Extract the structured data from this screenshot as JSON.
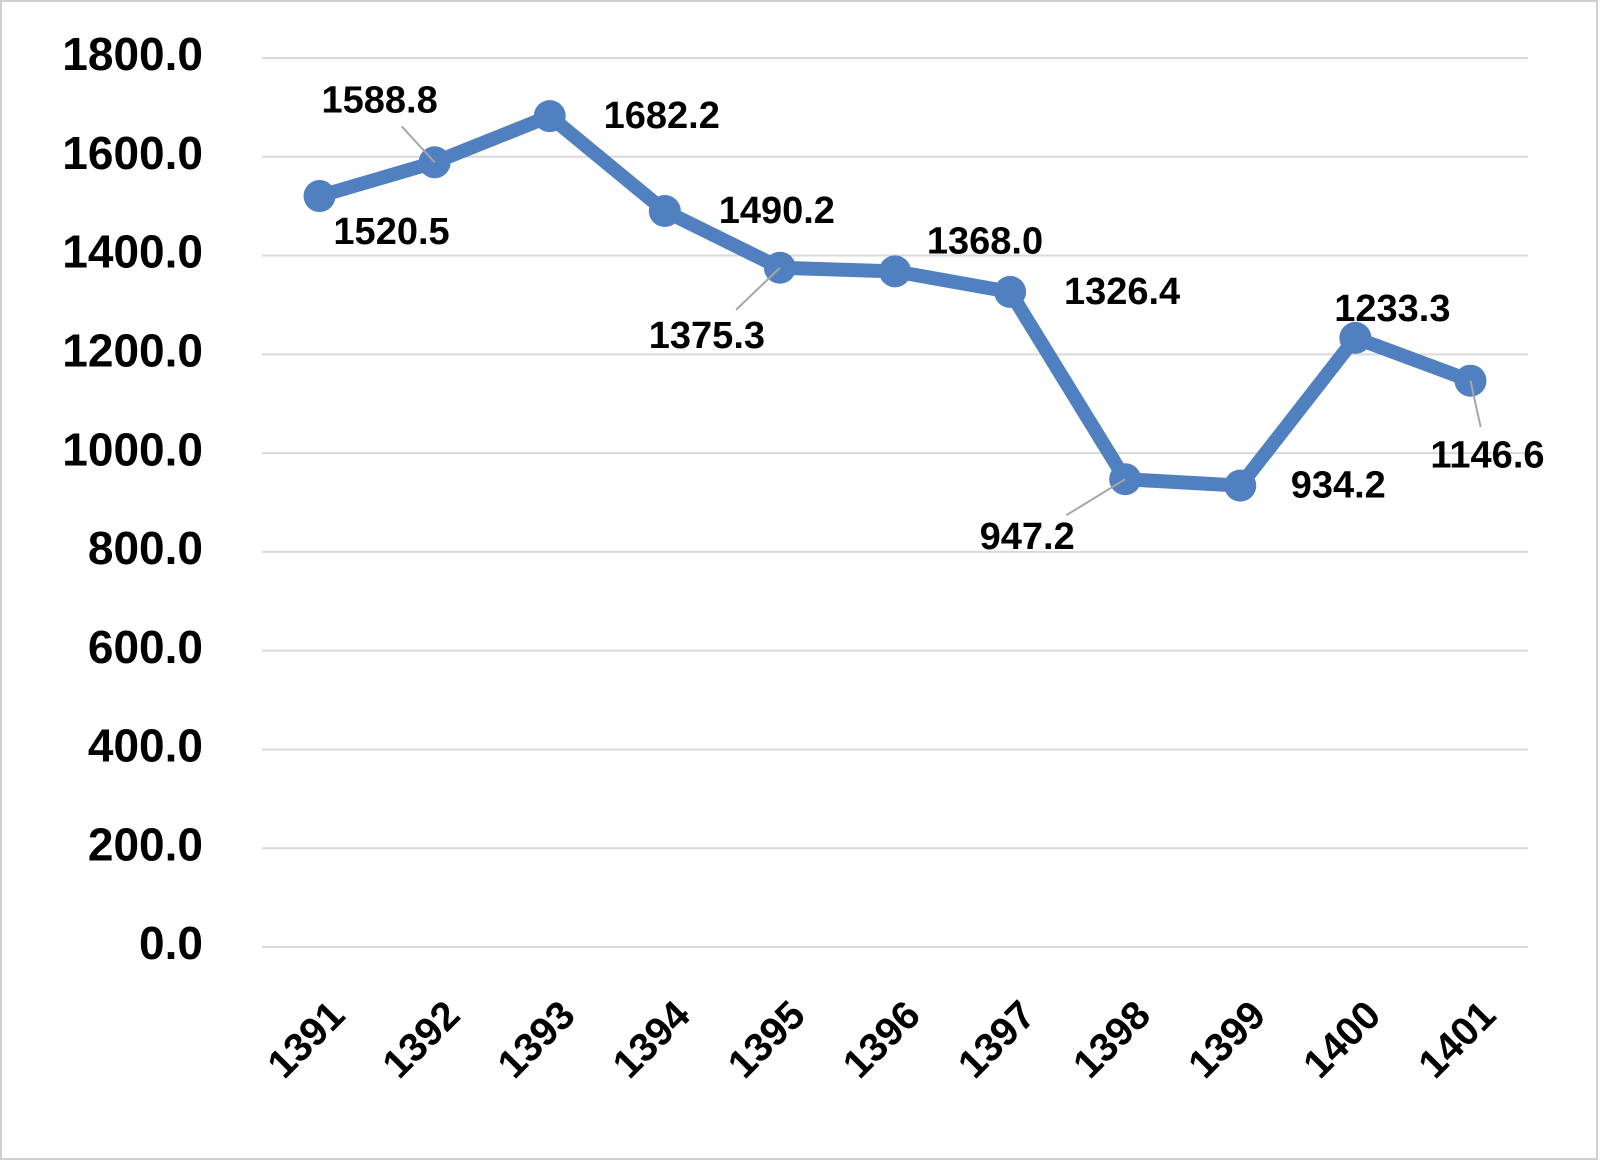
{
  "chart_data": {
    "type": "line",
    "categories": [
      "1391",
      "1392",
      "1393",
      "1394",
      "1395",
      "1396",
      "1397",
      "1398",
      "1399",
      "1400",
      "1401"
    ],
    "series": [
      {
        "color": "#5080c0",
        "values": [
          1520.5,
          1588.8,
          1682.2,
          1490.2,
          1375.3,
          1368.0,
          1326.4,
          947.2,
          934.2,
          1233.3,
          1146.6
        ],
        "value_labels": [
          "1520.5",
          "1588.8",
          "1682.2",
          "1490.2",
          "1375.3",
          "1368.0",
          "1326.4",
          "947.2",
          "934.2",
          "1233.3",
          "1146.6"
        ]
      }
    ],
    "ylim": [
      0,
      1800
    ],
    "yticks": [
      {
        "value": 0,
        "label": "0.0"
      },
      {
        "value": 200,
        "label": "200.0"
      },
      {
        "value": 400,
        "label": "400.0"
      },
      {
        "value": 600,
        "label": "600.0"
      },
      {
        "value": 800,
        "label": "800.0"
      },
      {
        "value": 1000,
        "label": "1000.0"
      },
      {
        "value": 1200,
        "label": "1200.0"
      },
      {
        "value": 1400,
        "label": "1400.0"
      },
      {
        "value": 1600,
        "label": "1600.0"
      },
      {
        "value": 1800,
        "label": "1800.0"
      }
    ],
    "grid": true
  }
}
